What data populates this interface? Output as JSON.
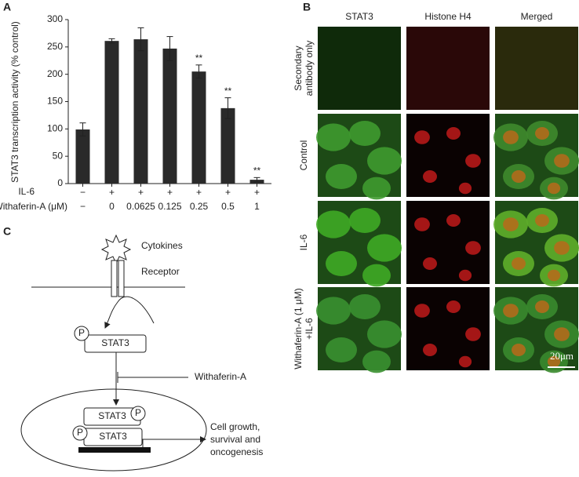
{
  "panels": {
    "a": "A",
    "b": "B",
    "c": "C"
  },
  "chart_data": {
    "type": "bar",
    "y_label": "STAT3 transcription activity (% control)",
    "row_labels": [
      "IL-6",
      "Withaferin-A (μM)"
    ],
    "il6": [
      "−",
      "+",
      "+",
      "+",
      "+",
      "+",
      "+"
    ],
    "categories": [
      "−",
      "0",
      "0.0625",
      "0.125",
      "0.25",
      "0.5",
      "1"
    ],
    "values": [
      99,
      261,
      264,
      247,
      205,
      138,
      7
    ],
    "errors": [
      12,
      4,
      21,
      22,
      12,
      19,
      4
    ],
    "annotations": [
      null,
      null,
      null,
      null,
      "**",
      "**",
      "**"
    ],
    "color": "#2a2a2a",
    "ylim": [
      0,
      300
    ],
    "yticks": [
      0,
      50,
      100,
      150,
      200,
      250,
      300
    ]
  },
  "microscopy": {
    "columns": [
      "STAT3",
      "Histone H4",
      "Merged"
    ],
    "rows": [
      [
        "Secondary",
        "antibody only"
      ],
      [
        "Control"
      ],
      [
        "IL-6"
      ],
      [
        "Withaferin-A (1 μM)",
        "+IL-6"
      ]
    ],
    "scale_bar": "20μm"
  },
  "diagram": {
    "cytokines": "Cytokines",
    "receptor": "Receptor",
    "phospho": "P",
    "stat3": "STAT3",
    "inhibitor": "Withaferin-A",
    "outcome": [
      "Cell growth,",
      "survival and",
      "oncogenesis"
    ]
  }
}
